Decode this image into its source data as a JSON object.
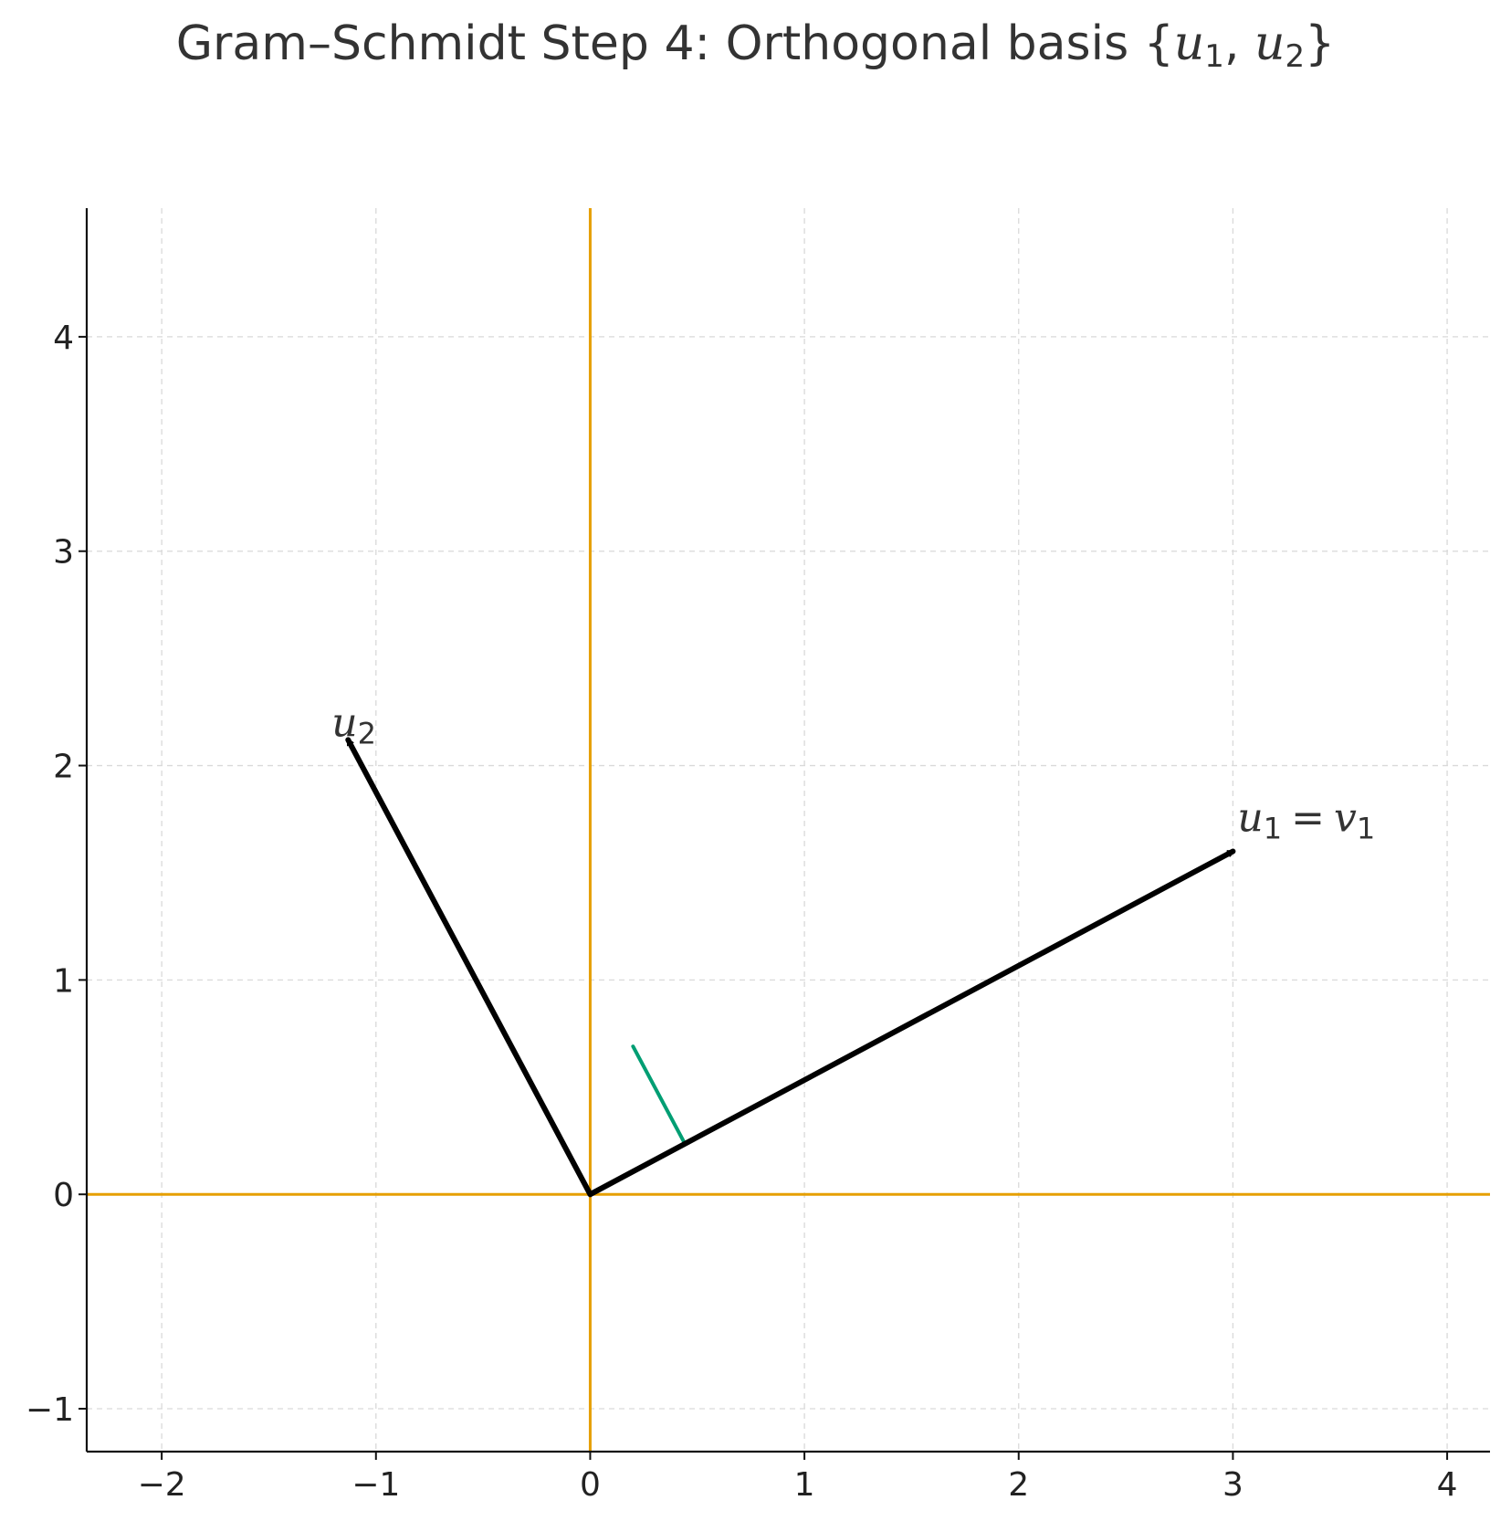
{
  "chart_data": {
    "type": "line",
    "title": {
      "prefix": "Gram–Schmidt Step 4: Orthogonal basis {",
      "var1": "u",
      "sub1": "1",
      "separator": ", ",
      "var2": "u",
      "sub2": "2",
      "suffix": "}"
    },
    "xlabel": "",
    "ylabel": "",
    "xlim": [
      -2.35,
      4.2
    ],
    "ylim": [
      -1.2,
      4.6
    ],
    "xticks": [
      -2,
      -1,
      0,
      1,
      2,
      3,
      4
    ],
    "yticks": [
      -1,
      0,
      1,
      2,
      3,
      4
    ],
    "xtick_labels": [
      "−2",
      "−1",
      "0",
      "1",
      "2",
      "3",
      "4"
    ],
    "ytick_labels": [
      "−1",
      "0",
      "1",
      "2",
      "3",
      "4"
    ],
    "grid": true,
    "reference_axes": {
      "x": 0,
      "y": 0,
      "color": "#E69F00"
    },
    "vectors": [
      {
        "id": "u1",
        "from": [
          0,
          0
        ],
        "to": [
          3.0,
          1.6
        ],
        "color": "#000000",
        "label": {
          "var1": "u",
          "sub1": "1",
          "eq": "=",
          "var2": "v",
          "sub2": "1"
        }
      },
      {
        "id": "u2",
        "from": [
          0,
          0
        ],
        "to": [
          -1.13,
          2.12
        ],
        "color": "#000000",
        "label": {
          "var1": "u",
          "sub1": "2"
        }
      }
    ],
    "right_angle_marker": {
      "from": [
        0.44,
        0.24
      ],
      "to": [
        0.2,
        0.69
      ],
      "color": "#009E73"
    }
  }
}
